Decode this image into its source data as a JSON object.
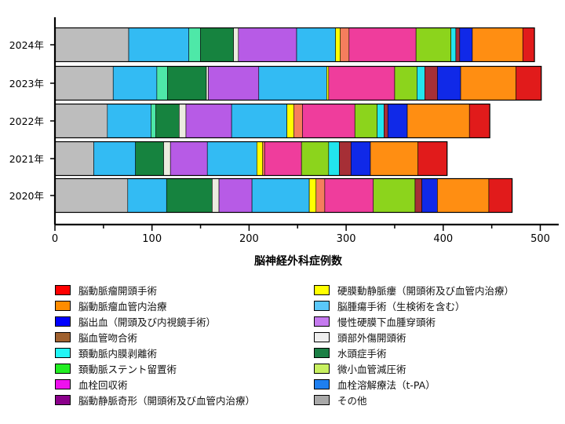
{
  "chart_data": {
    "type": "bar",
    "orientation": "horizontal",
    "stacked": true,
    "xlabel": "脳神経外科症例数",
    "xlim": [
      0,
      510
    ],
    "xticks": [
      0,
      100,
      200,
      300,
      400,
      500
    ],
    "categories": [
      "2024年",
      "2023年",
      "2022年",
      "2021年",
      "2020年"
    ],
    "grid": false,
    "legend_position": "bottom",
    "series": [
      {
        "name": "その他",
        "color": "#BDBDBD",
        "values": [
          76,
          60,
          54,
          40,
          75
        ]
      },
      {
        "name": "脳腫瘍手術（生検術を含む）",
        "color": "#33BBF3",
        "values": [
          62,
          45,
          45,
          43,
          40
        ]
      },
      {
        "name": "頚動脈内膜剥離術",
        "color": "#4EE8A8",
        "values": [
          12,
          11,
          5,
          0,
          0
        ]
      },
      {
        "name": "水頭症手術",
        "color": "#16833F",
        "values": [
          34,
          40,
          24,
          29,
          47
        ]
      },
      {
        "name": "頭部外傷開頭術",
        "color": "#ECECE0",
        "values": [
          5,
          2,
          7,
          7,
          7
        ]
      },
      {
        "name": "慢性硬膜下血腫穿頭術",
        "color": "#B75BE6",
        "values": [
          60,
          52,
          47,
          38,
          34
        ]
      },
      {
        "name": "脳出血（開頭及び内視鏡手術）",
        "color": "#33BBF3",
        "values": [
          40,
          70,
          57,
          51,
          59
        ]
      },
      {
        "name": "硬膜動静脈瘻（開頭術及び血管内治療）",
        "color": "#FFFF00",
        "values": [
          5,
          2,
          7,
          6,
          7
        ]
      },
      {
        "name": "脳動脈瘤血管内治療",
        "color": "#F57E5D",
        "values": [
          9,
          0,
          9,
          2,
          9
        ]
      },
      {
        "name": "血栓回収術",
        "color": "#EF3D9C",
        "values": [
          69,
          68,
          54,
          38,
          50
        ]
      },
      {
        "name": "微小血管減圧術",
        "color": "#8CD41C",
        "values": [
          36,
          23,
          23,
          28,
          43
        ]
      },
      {
        "name": "頚動脈内膜剥離術",
        "color": "#22E5EE",
        "values": [
          5,
          8,
          7,
          11,
          0
        ]
      },
      {
        "name": "脳動静脈奇形（開頭術及び血管内治療）",
        "color": "#A62F36",
        "values": [
          4,
          13,
          4,
          12,
          7
        ]
      },
      {
        "name": "脳出血（開頭及び内視鏡手術）",
        "color": "#1029E8",
        "values": [
          13,
          24,
          20,
          20,
          16
        ]
      },
      {
        "name": "脳動脈瘤血管内治療",
        "color": "#FF8E12",
        "values": [
          52,
          57,
          64,
          49,
          53
        ]
      },
      {
        "name": "脳動脈瘤開頭手術",
        "color": "#E11B1B",
        "values": [
          12,
          26,
          21,
          30,
          24
        ]
      }
    ],
    "legend": [
      {
        "label": "脳動脈瘤開頭手術",
        "color": "#FF0000"
      },
      {
        "label": "脳動脈瘤血管内治療",
        "color": "#FF8C00"
      },
      {
        "label": "脳出血（開頭及び内視鏡手術）",
        "color": "#0000FF"
      },
      {
        "label": "脳血管吻合術",
        "color": "#A0612F"
      },
      {
        "label": "頚動脈内膜剥離術",
        "color": "#22F5F5"
      },
      {
        "label": "頚動脈ステント留置術",
        "color": "#22EE22"
      },
      {
        "label": "血栓回収術",
        "color": "#EE11EE"
      },
      {
        "label": "脳動静脈奇形（開頭術及び血管内治療）",
        "color": "#8B008B"
      },
      {
        "label": "硬膜動静脈瘻（開頭術及び血管内治療）",
        "color": "#FFFF00"
      },
      {
        "label": "脳腫瘍手術（生検術を含む）",
        "color": "#5AC8FA"
      },
      {
        "label": "慢性硬膜下血腫穿頭術",
        "color": "#C57AEF"
      },
      {
        "label": "頭部外傷開頭術",
        "color": "#EEEEEE"
      },
      {
        "label": "水頭症手術",
        "color": "#1B7F45"
      },
      {
        "label": "微小血管減圧術",
        "color": "#C8F060"
      },
      {
        "label": "血栓溶解療法（t-PA）",
        "color": "#1E7FF0"
      },
      {
        "label": "その他",
        "color": "#A9A9A9"
      }
    ]
  }
}
